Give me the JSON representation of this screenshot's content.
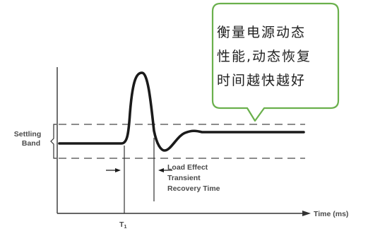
{
  "callout": {
    "lines": [
      "衡量电源动态",
      "性能,动态恢复",
      "时间越快越好"
    ],
    "border_color": "#6ab04c"
  },
  "diagram": {
    "settling_band_label": [
      "Settling",
      "Band"
    ],
    "load_effect_label": [
      "Load Effect",
      "Transient",
      "Recovery Time"
    ],
    "x_axis_label": "Time (ms)",
    "t1_label": "T",
    "t1_subscript": "1",
    "curve_color": "#1a1a1a",
    "band_color": "#8c8c8c"
  }
}
